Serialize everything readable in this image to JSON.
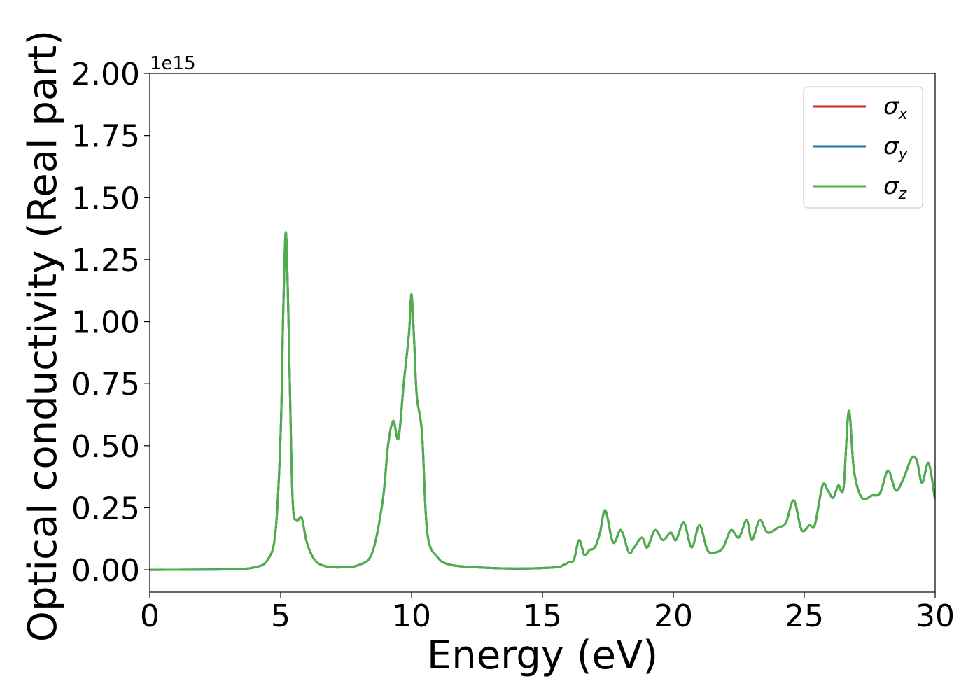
{
  "chart_data": {
    "type": "line",
    "title": "",
    "xlabel": "Energy (eV)",
    "ylabel": "Optical conductivity (Real part)",
    "y_offset_label": "1e15",
    "xlim": [
      0,
      30
    ],
    "ylim": [
      -0.09,
      2.0
    ],
    "x_ticks": [
      0,
      5,
      10,
      15,
      20,
      25,
      30
    ],
    "x_tick_labels": [
      "0",
      "5",
      "10",
      "15",
      "20",
      "25",
      "30"
    ],
    "y_ticks": [
      0.0,
      0.25,
      0.5,
      0.75,
      1.0,
      1.25,
      1.5,
      1.75,
      2.0
    ],
    "y_tick_labels": [
      "0.00",
      "0.25",
      "0.50",
      "0.75",
      "1.00",
      "1.25",
      "1.50",
      "1.75",
      "2.00"
    ],
    "grid": false,
    "legend_position": "top-right",
    "series": [
      {
        "name": "σx",
        "symbol": "σ",
        "subscript": "x",
        "color": "#d62728"
      },
      {
        "name": "σy",
        "symbol": "σ",
        "subscript": "y",
        "color": "#1f77b4"
      },
      {
        "name": "σz",
        "symbol": "σ",
        "subscript": "z",
        "color": "#4daf4a"
      }
    ],
    "curve": {
      "x": [
        0,
        3.0,
        4.0,
        4.5,
        4.8,
        5.0,
        5.1,
        5.2,
        5.3,
        5.45,
        5.6,
        5.8,
        6.0,
        6.3,
        6.7,
        7.3,
        8.0,
        8.5,
        8.9,
        9.1,
        9.3,
        9.5,
        9.7,
        9.9,
        10.0,
        10.1,
        10.2,
        10.4,
        10.6,
        11.0,
        11.5,
        12.5,
        14.0,
        15.5,
        15.8,
        16.0,
        16.2,
        16.4,
        16.6,
        16.8,
        17.0,
        17.2,
        17.4,
        17.7,
        18.0,
        18.3,
        18.5,
        18.8,
        19.0,
        19.3,
        19.6,
        19.9,
        20.1,
        20.4,
        20.7,
        21.0,
        21.3,
        21.6,
        21.9,
        22.2,
        22.5,
        22.8,
        23.0,
        23.3,
        23.6,
        24.0,
        24.3,
        24.6,
        24.9,
        25.2,
        25.4,
        25.7,
        25.9,
        26.1,
        26.3,
        26.5,
        26.7,
        26.9,
        27.2,
        27.6,
        27.9,
        28.2,
        28.5,
        28.8,
        29.1,
        29.3,
        29.5,
        29.75,
        30.0
      ],
      "y": [
        0.0,
        0.002,
        0.01,
        0.04,
        0.15,
        0.55,
        1.05,
        1.36,
        1.0,
        0.3,
        0.2,
        0.21,
        0.11,
        0.04,
        0.015,
        0.01,
        0.02,
        0.07,
        0.28,
        0.5,
        0.6,
        0.53,
        0.75,
        0.95,
        1.11,
        0.92,
        0.7,
        0.55,
        0.15,
        0.05,
        0.02,
        0.01,
        0.005,
        0.01,
        0.02,
        0.03,
        0.04,
        0.12,
        0.06,
        0.08,
        0.09,
        0.15,
        0.24,
        0.11,
        0.16,
        0.07,
        0.09,
        0.13,
        0.09,
        0.16,
        0.12,
        0.15,
        0.12,
        0.19,
        0.09,
        0.18,
        0.08,
        0.07,
        0.09,
        0.16,
        0.13,
        0.2,
        0.12,
        0.2,
        0.15,
        0.17,
        0.19,
        0.28,
        0.16,
        0.18,
        0.18,
        0.34,
        0.32,
        0.29,
        0.34,
        0.33,
        0.64,
        0.4,
        0.29,
        0.3,
        0.31,
        0.4,
        0.32,
        0.37,
        0.45,
        0.44,
        0.35,
        0.43,
        0.28
      ]
    }
  }
}
